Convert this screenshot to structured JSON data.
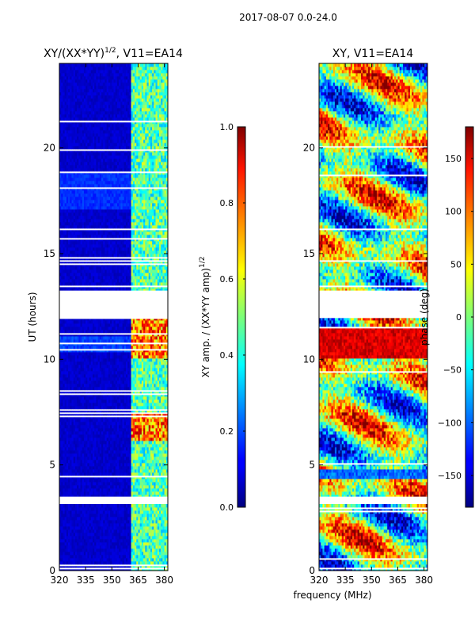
{
  "figure_title": "2017-08-07 0.0-24.0",
  "xlabel": "frequency (MHz)",
  "chart_data": [
    {
      "type": "heatmap",
      "title_main": "XY/(XX*YY)",
      "title_sup": "1/2",
      "title_rest": ", V11=EA14",
      "ylabel": "UT (hours)",
      "xlabel": "frequency (MHz)",
      "xlim": [
        320,
        382
      ],
      "ylim": [
        0,
        24
      ],
      "xticks": [
        320,
        335,
        350,
        365,
        380
      ],
      "yticks": [
        0,
        5,
        10,
        15,
        20
      ],
      "quantity": "normalized XY amplitude",
      "value_range": [
        0.0,
        1.0
      ],
      "colormap": "jet",
      "colorbar": {
        "label_main": "XY amp. / (XX*YY amp)",
        "label_sup": "1/2",
        "min": 0.0,
        "max": 1.0,
        "ticks": [
          0.0,
          0.2,
          0.4,
          0.6,
          0.8,
          1.0
        ],
        "tick_labels": [
          "0.0",
          "0.2",
          "0.4",
          "0.6",
          "0.8",
          "1.0"
        ]
      },
      "bright_channel_band_mhz": [
        361,
        382
      ],
      "data_gap_ut": [
        [
          11.95,
          13.25
        ],
        [
          3.15,
          3.5
        ]
      ]
    },
    {
      "type": "heatmap",
      "title": "XY, V11=EA14",
      "xlabel": "frequency (MHz)",
      "xlim": [
        320,
        382
      ],
      "ylim": [
        0,
        24
      ],
      "xticks": [
        320,
        335,
        350,
        365,
        380
      ],
      "yticks": [
        0,
        5,
        10,
        15,
        20
      ],
      "quantity": "XY phase",
      "value_range": [
        -180,
        180
      ],
      "colormap": "jet",
      "colorbar": {
        "label": "phase (deg)",
        "min": -180,
        "max": 180,
        "ticks": [
          -150,
          -100,
          -50,
          0,
          50,
          100,
          150
        ],
        "tick_labels": [
          "−150",
          "−100",
          "−50",
          "0",
          "50",
          "100",
          "150"
        ]
      },
      "data_gap_ut": [
        [
          11.95,
          13.25
        ],
        [
          3.15,
          3.5
        ]
      ]
    }
  ]
}
